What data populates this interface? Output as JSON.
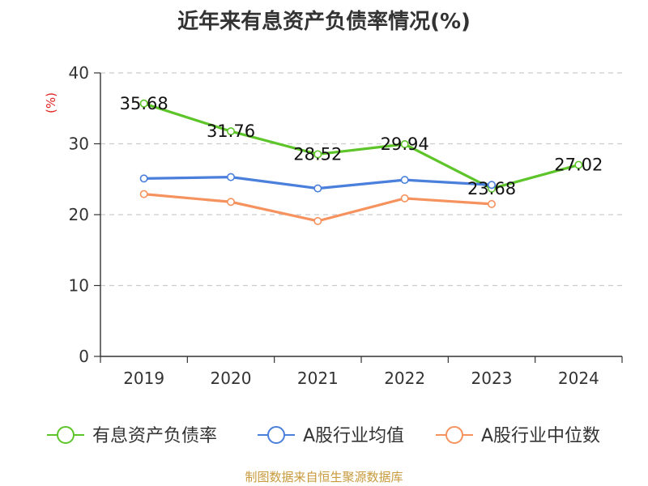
{
  "chart_data": {
    "type": "line",
    "title": "近年来有息资产负债率情况(%)",
    "ylabel": "(%)",
    "categories": [
      "2019",
      "2020",
      "2021",
      "2022",
      "2023",
      "2024"
    ],
    "ylim": [
      0,
      40
    ],
    "yticks": [
      0,
      10,
      20,
      30,
      40
    ],
    "grid": true,
    "legend_position": "bottom",
    "series": [
      {
        "name": "有息资产负债率",
        "color": "#5dc52a",
        "show_labels": true,
        "values": [
          35.68,
          31.76,
          28.52,
          29.94,
          23.68,
          27.02
        ]
      },
      {
        "name": "A股行业均值",
        "color": "#4a7fdc",
        "show_labels": false,
        "values": [
          25.1,
          25.3,
          23.7,
          24.9,
          24.2,
          null
        ]
      },
      {
        "name": "A股行业中位数",
        "color": "#f5925e",
        "show_labels": false,
        "values": [
          22.9,
          21.8,
          19.1,
          22.3,
          21.5,
          null
        ]
      }
    ]
  },
  "footer": {
    "source": "制图数据来自恒生聚源数据库"
  }
}
